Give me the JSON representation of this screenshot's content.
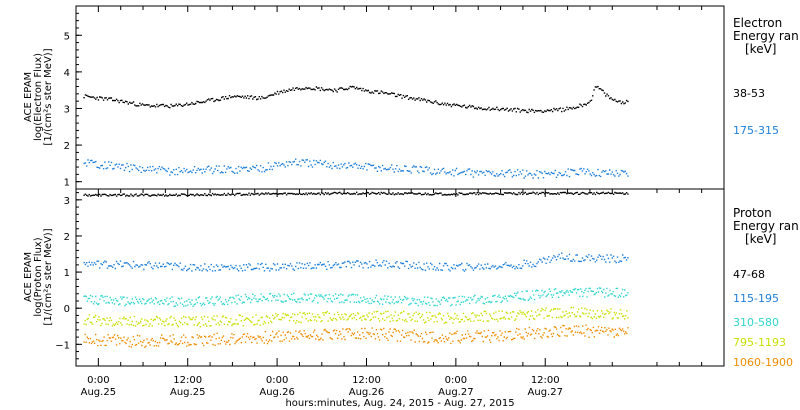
{
  "chart_data": [
    {
      "type": "scatter",
      "ylabel_lines": [
        "ACE EPAM",
        "log(Electron Flux)",
        "[1/(cm²s ster MeV)]"
      ],
      "ylim": [
        0.8,
        5.8
      ],
      "yticks": [
        1,
        2,
        3,
        4,
        5
      ],
      "legend": {
        "title_lines": [
          "Electron",
          "Energy ran",
          "[keV]"
        ],
        "placement": "right"
      },
      "series": [
        {
          "name": "38-53",
          "color": "#000000",
          "x": [
            -2,
            2,
            6,
            10,
            14,
            18,
            22,
            24,
            26,
            28,
            30,
            32,
            34,
            36,
            38,
            42,
            46,
            50,
            54,
            58,
            62,
            64,
            66,
            66.5,
            67,
            68,
            69,
            70,
            71
          ],
          "y": [
            3.35,
            3.25,
            3.1,
            3.08,
            3.2,
            3.35,
            3.3,
            3.45,
            3.55,
            3.6,
            3.55,
            3.52,
            3.6,
            3.5,
            3.45,
            3.3,
            3.15,
            3.05,
            3.0,
            2.95,
            2.98,
            3.05,
            3.2,
            3.55,
            3.6,
            3.4,
            3.25,
            3.2,
            3.2
          ]
        },
        {
          "name": "175-315",
          "color": "#1e7fd9",
          "x": [
            -2,
            2,
            6,
            10,
            14,
            18,
            22,
            26,
            30,
            34,
            38,
            42,
            46,
            50,
            54,
            58,
            62,
            66,
            71
          ],
          "y": [
            1.55,
            1.45,
            1.35,
            1.3,
            1.35,
            1.35,
            1.4,
            1.55,
            1.5,
            1.45,
            1.4,
            1.35,
            1.3,
            1.25,
            1.25,
            1.22,
            1.25,
            1.28,
            1.25
          ]
        }
      ]
    },
    {
      "type": "scatter",
      "ylabel_lines": [
        "ACE EPAM",
        "log(Proton Flux)",
        "[1/(cm²s ster MeV)]"
      ],
      "ylim": [
        -1.6,
        3.3
      ],
      "yticks": [
        3,
        2,
        1,
        0,
        -1
      ],
      "legend": {
        "title_lines": [
          "Proton",
          "Energy ran",
          "[keV]"
        ],
        "placement": "right"
      },
      "series": [
        {
          "name": "47-68",
          "color": "#000000",
          "x": [
            -2,
            10,
            22,
            34,
            46,
            58,
            71
          ],
          "y": [
            3.15,
            3.15,
            3.18,
            3.2,
            3.18,
            3.2,
            3.2
          ]
        },
        {
          "name": "115-195",
          "color": "#1e7fd9",
          "x": [
            -2,
            6,
            14,
            22,
            30,
            38,
            42,
            46,
            50,
            54,
            58,
            62,
            66,
            71
          ],
          "y": [
            1.25,
            1.2,
            1.15,
            1.15,
            1.2,
            1.25,
            1.2,
            1.15,
            1.15,
            1.2,
            1.25,
            1.45,
            1.4,
            1.38
          ]
        },
        {
          "name": "310-580",
          "color": "#2fd6cd",
          "x": [
            -2,
            6,
            14,
            22,
            30,
            38,
            46,
            54,
            62,
            71
          ],
          "y": [
            0.25,
            0.2,
            0.2,
            0.3,
            0.3,
            0.25,
            0.2,
            0.3,
            0.45,
            0.45
          ]
        },
        {
          "name": "795-1193",
          "color": "#c8e000",
          "x": [
            -2,
            6,
            14,
            22,
            30,
            38,
            46,
            54,
            62,
            71
          ],
          "y": [
            -0.3,
            -0.35,
            -0.35,
            -0.3,
            -0.2,
            -0.2,
            -0.25,
            -0.2,
            -0.1,
            -0.15
          ]
        },
        {
          "name": "1060-1900",
          "color": "#f08c00",
          "x": [
            -2,
            6,
            14,
            22,
            30,
            38,
            46,
            54,
            62,
            71
          ],
          "y": [
            -0.85,
            -0.9,
            -0.85,
            -0.8,
            -0.7,
            -0.7,
            -0.8,
            -0.75,
            -0.6,
            -0.65
          ]
        }
      ]
    }
  ],
  "x_axis": {
    "xlim_hours": [
      -3,
      84
    ],
    "ticks": [
      {
        "hour": 0,
        "time": "0:00",
        "date": "Aug.25"
      },
      {
        "hour": 12,
        "time": "12:00",
        "date": "Aug.25"
      },
      {
        "hour": 24,
        "time": "0:00",
        "date": "Aug.26"
      },
      {
        "hour": 36,
        "time": "12:00",
        "date": "Aug.26"
      },
      {
        "hour": 48,
        "time": "0:00",
        "date": "Aug.27"
      },
      {
        "hour": 60,
        "time": "12:00",
        "date": "Aug.27"
      }
    ],
    "label": "hours:minutes, Aug. 24, 2015 - Aug. 27, 2015"
  }
}
